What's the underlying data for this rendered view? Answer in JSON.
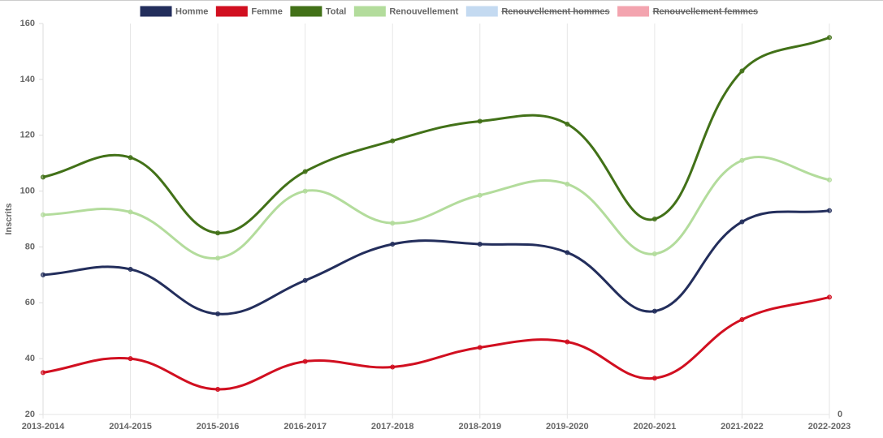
{
  "chart_data": {
    "type": "line",
    "categories": [
      "2013-2014",
      "2014-2015",
      "2015-2016",
      "2016-2017",
      "2017-2018",
      "2018-2019",
      "2019-2020",
      "2020-2021",
      "2021-2022",
      "2022-2023"
    ],
    "y_label": "Inscrits",
    "ylim": [
      20,
      160
    ],
    "yticks": [
      20,
      40,
      60,
      80,
      100,
      120,
      140,
      160
    ],
    "y2ticks": [
      0
    ],
    "grid": "x",
    "legend": "top",
    "series": [
      {
        "name": "Homme",
        "color": "#232e5c",
        "values": [
          70,
          72,
          56,
          68,
          81,
          81,
          78,
          57,
          89,
          93
        ]
      },
      {
        "name": "Femme",
        "color": "#d10f20",
        "values": [
          35,
          40,
          29,
          39,
          37,
          44,
          46,
          33,
          54,
          62
        ]
      },
      {
        "name": "Total",
        "color": "#427118",
        "values": [
          105,
          112,
          85,
          107,
          118,
          125,
          124,
          90,
          143,
          155
        ]
      },
      {
        "name": "Renouvellement",
        "color": "#b3dc9c",
        "values": [
          91.5,
          92.5,
          76,
          100,
          88.5,
          98.5,
          102.5,
          77.5,
          111,
          104
        ]
      },
      {
        "name": "Renouvellement hommes",
        "color": "#c4daf1",
        "hidden": true
      },
      {
        "name": "Renouvellement femmes",
        "color": "#f3a4af",
        "hidden": true
      }
    ]
  }
}
